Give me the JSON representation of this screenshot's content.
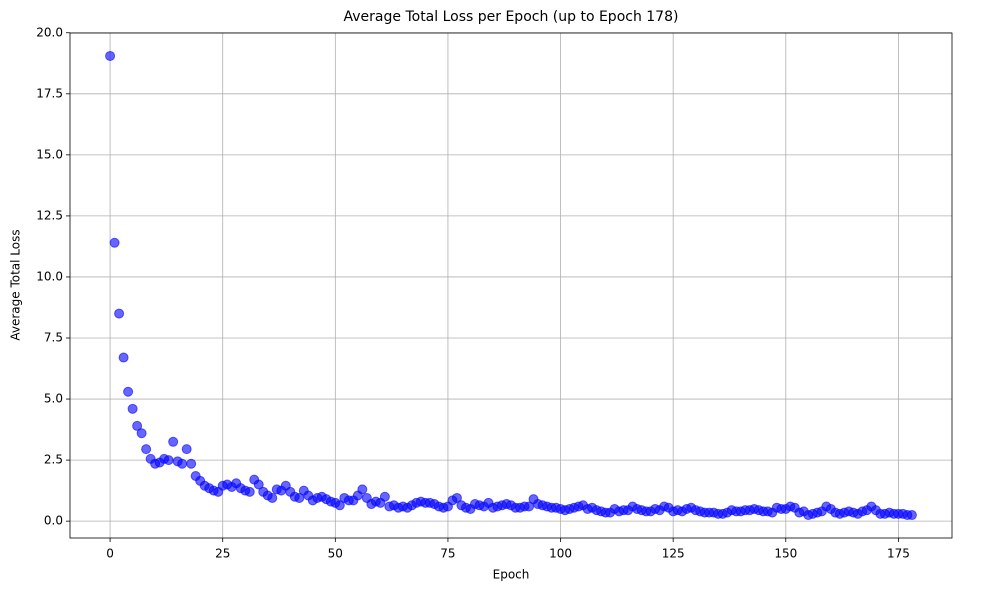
{
  "chart_data": {
    "type": "scatter",
    "title": "Average Total Loss per Epoch (up to Epoch 178)",
    "x_label": "Epoch",
    "y_label": "Average Total Loss",
    "x": [
      0,
      1,
      2,
      3,
      4,
      5,
      6,
      7,
      8,
      9,
      10,
      11,
      12,
      13,
      14,
      15,
      16,
      17,
      18,
      19,
      20,
      21,
      22,
      23,
      24,
      25,
      26,
      27,
      28,
      29,
      30,
      31,
      32,
      33,
      34,
      35,
      36,
      37,
      38,
      39,
      40,
      41,
      42,
      43,
      44,
      45,
      46,
      47,
      48,
      49,
      50,
      51,
      52,
      53,
      54,
      55,
      56,
      57,
      58,
      59,
      60,
      61,
      62,
      63,
      64,
      65,
      66,
      67,
      68,
      69,
      70,
      71,
      72,
      73,
      74,
      75,
      76,
      77,
      78,
      79,
      80,
      81,
      82,
      83,
      84,
      85,
      86,
      87,
      88,
      89,
      90,
      91,
      92,
      93,
      94,
      95,
      96,
      97,
      98,
      99,
      100,
      101,
      102,
      103,
      104,
      105,
      106,
      107,
      108,
      109,
      110,
      111,
      112,
      113,
      114,
      115,
      116,
      117,
      118,
      119,
      120,
      121,
      122,
      123,
      124,
      125,
      126,
      127,
      128,
      129,
      130,
      131,
      132,
      133,
      134,
      135,
      136,
      137,
      138,
      139,
      140,
      141,
      142,
      143,
      144,
      145,
      146,
      147,
      148,
      149,
      150,
      151,
      152,
      153,
      154,
      155,
      156,
      157,
      158,
      159,
      160,
      161,
      162,
      163,
      164,
      165,
      166,
      167,
      168,
      169,
      170,
      171,
      172,
      173,
      174,
      175,
      176,
      177,
      178
    ],
    "series": [
      {
        "name": "Average Total Loss",
        "color": "#0000ff",
        "values": [
          19.05,
          11.4,
          8.5,
          6.7,
          5.3,
          4.6,
          3.9,
          3.6,
          2.95,
          2.55,
          2.35,
          2.4,
          2.55,
          2.5,
          3.25,
          2.45,
          2.35,
          2.95,
          2.35,
          1.85,
          1.65,
          1.45,
          1.35,
          1.25,
          1.2,
          1.45,
          1.5,
          1.4,
          1.55,
          1.35,
          1.25,
          1.2,
          1.7,
          1.5,
          1.2,
          1.05,
          0.95,
          1.3,
          1.25,
          1.45,
          1.2,
          1.0,
          0.95,
          1.25,
          1.05,
          0.85,
          0.95,
          1.0,
          0.9,
          0.8,
          0.75,
          0.65,
          0.95,
          0.85,
          0.85,
          1.05,
          1.3,
          0.95,
          0.7,
          0.8,
          0.75,
          1.0,
          0.6,
          0.65,
          0.55,
          0.6,
          0.55,
          0.65,
          0.75,
          0.8,
          0.75,
          0.75,
          0.7,
          0.6,
          0.55,
          0.6,
          0.85,
          0.95,
          0.65,
          0.55,
          0.5,
          0.7,
          0.65,
          0.6,
          0.75,
          0.55,
          0.6,
          0.65,
          0.7,
          0.65,
          0.55,
          0.55,
          0.6,
          0.6,
          0.9,
          0.7,
          0.65,
          0.6,
          0.55,
          0.55,
          0.5,
          0.45,
          0.5,
          0.55,
          0.6,
          0.65,
          0.5,
          0.55,
          0.45,
          0.4,
          0.35,
          0.35,
          0.5,
          0.4,
          0.45,
          0.45,
          0.6,
          0.5,
          0.45,
          0.4,
          0.4,
          0.5,
          0.45,
          0.6,
          0.55,
          0.4,
          0.45,
          0.4,
          0.5,
          0.55,
          0.45,
          0.4,
          0.35,
          0.35,
          0.35,
          0.3,
          0.3,
          0.35,
          0.45,
          0.4,
          0.4,
          0.45,
          0.45,
          0.5,
          0.45,
          0.4,
          0.4,
          0.35,
          0.55,
          0.5,
          0.5,
          0.6,
          0.55,
          0.35,
          0.4,
          0.25,
          0.3,
          0.35,
          0.4,
          0.6,
          0.5,
          0.35,
          0.3,
          0.35,
          0.4,
          0.35,
          0.3,
          0.4,
          0.45,
          0.6,
          0.45,
          0.3,
          0.3,
          0.35,
          0.3,
          0.3,
          0.3,
          0.25,
          0.25
        ]
      }
    ],
    "xlim": [
      -8.9,
      186.9
    ],
    "ylim": [
      -0.69,
      19.99
    ],
    "xticks": [
      0,
      25,
      50,
      75,
      100,
      125,
      150,
      175
    ],
    "yticks": [
      {
        "value": 0,
        "label": "0.0"
      },
      2.5,
      {
        "value": 5,
        "label": "5.0"
      },
      7.5,
      {
        "value": 10,
        "label": "10.0"
      },
      12.5,
      {
        "value": 15,
        "label": "15.0"
      },
      17.5,
      {
        "value": 20,
        "label": "20.0"
      }
    ],
    "grid": true
  }
}
